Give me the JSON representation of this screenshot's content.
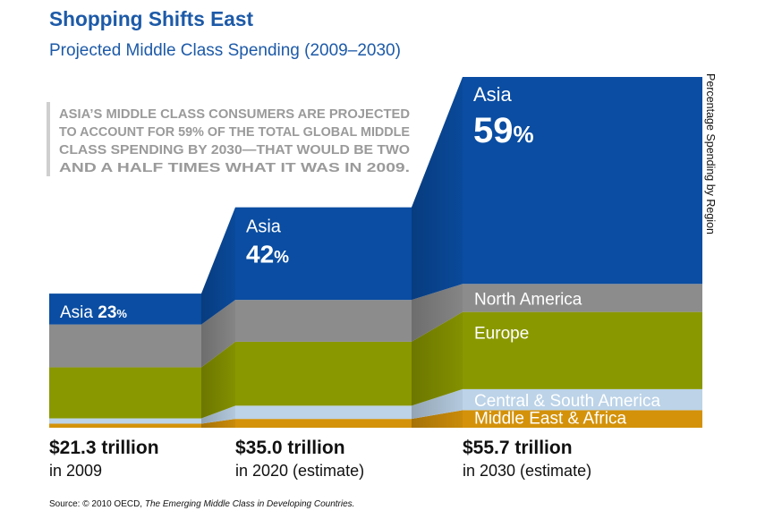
{
  "chart_data": {
    "type": "bar",
    "title": "Shopping Shifts East",
    "subtitle": "Projected Middle Class Spending (2009–2030)",
    "ylabel": "Percentage Spending by Region",
    "annotation": [
      "ASIA’S MIDDLE CLASS CONSUMERS ARE PROJECTED",
      "TO ACCOUNT FOR 59% OF THE TOTAL GLOBAL MIDDLE",
      "CLASS SPENDING BY 2030—THAT WOULD BE TWO",
      "AND A HALF TIMES WHAT IT WAS IN 2009."
    ],
    "source_prefix": "Source: © 2010 OECD, ",
    "source_title": "The Emerging Middle Class in Developing Countries.",
    "categories": [
      {
        "total": 21.3,
        "total_label": "$21.3 trillion",
        "sublabel": "in 2009"
      },
      {
        "total": 35.0,
        "total_label": "$35.0 trillion",
        "sublabel": "in 2020 (estimate)"
      },
      {
        "total": 55.7,
        "total_label": "$55.7 trillion",
        "sublabel": "in 2030 (estimate)"
      }
    ],
    "series": [
      {
        "name": "Middle East & Africa",
        "color": "#d4920a",
        "values": [
          3,
          4,
          5
        ]
      },
      {
        "name": "Central & South America",
        "color": "#bcd3e8",
        "values": [
          4,
          6,
          6
        ]
      },
      {
        "name": "Europe",
        "color": "#8a9800",
        "values": [
          38,
          29,
          22
        ]
      },
      {
        "name": "North America",
        "color": "#8c8c8c",
        "values": [
          32,
          19,
          8
        ]
      },
      {
        "name": "Asia",
        "color": "#0a4da2",
        "values": [
          23,
          42,
          59
        ]
      }
    ],
    "segment_labels": {
      "Asia": [
        "Asia",
        "Asia",
        "Asia"
      ],
      "North America": [
        "",
        "",
        "North America"
      ],
      "Europe": [
        "",
        "",
        "Europe"
      ],
      "Central & South America": [
        "",
        "",
        "Central & South America"
      ],
      "Middle East & Africa": [
        "",
        "",
        "Middle East & Africa"
      ]
    },
    "percent_sign": "%",
    "title_color": "#1d5aa8",
    "legend": "none"
  }
}
